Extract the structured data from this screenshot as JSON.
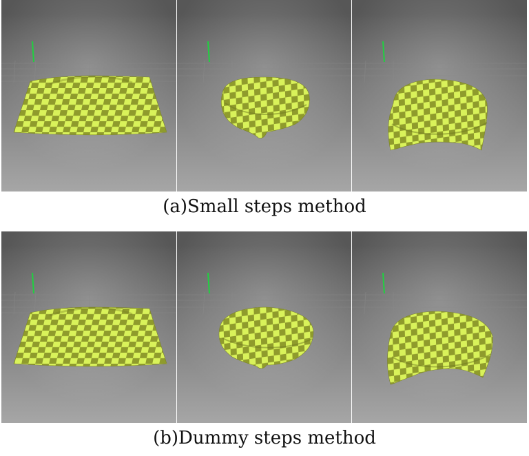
{
  "figure": {
    "rows": [
      {
        "caption": "(a)Small steps method",
        "panels": [
          "flat-sheet",
          "cloth-drape-small",
          "cloth-drape-large"
        ]
      },
      {
        "caption": "(b)Dummy steps method",
        "panels": [
          "flat-sheet",
          "cloth-drape-small",
          "cloth-drape-large"
        ]
      }
    ],
    "colors": {
      "cloth_light": "#d9f25a",
      "cloth_dark": "#8f9b2c",
      "background_top": "#5b5b5b",
      "background_bottom": "#a0a0a0",
      "axis_green": "#20d040"
    }
  }
}
